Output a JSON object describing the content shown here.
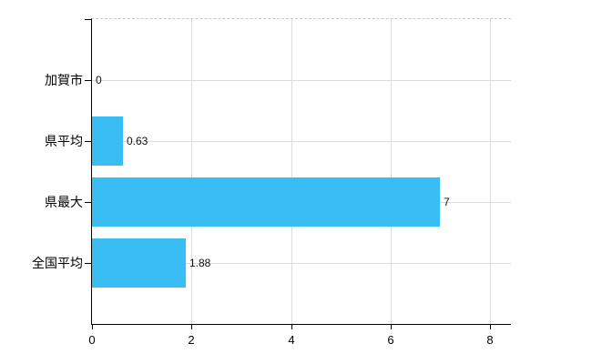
{
  "chart_data": {
    "type": "bar",
    "orientation": "horizontal",
    "title": "",
    "xlabel": "",
    "ylabel": "",
    "categories": [
      "加賀市",
      "県平均",
      "県最大",
      "全国平均"
    ],
    "values": [
      0,
      0.63,
      7,
      1.88
    ],
    "value_labels": [
      "0",
      "0.63",
      "7",
      "1.88"
    ],
    "x_ticks": [
      0,
      2,
      4,
      6,
      8
    ],
    "xlim": [
      0,
      8.42
    ],
    "grid": true,
    "legend": "none",
    "bar_color": "#3abdf2",
    "grid_color": "#dcdcdc",
    "axis_color": "#000000",
    "background_color": "#ffffff"
  }
}
